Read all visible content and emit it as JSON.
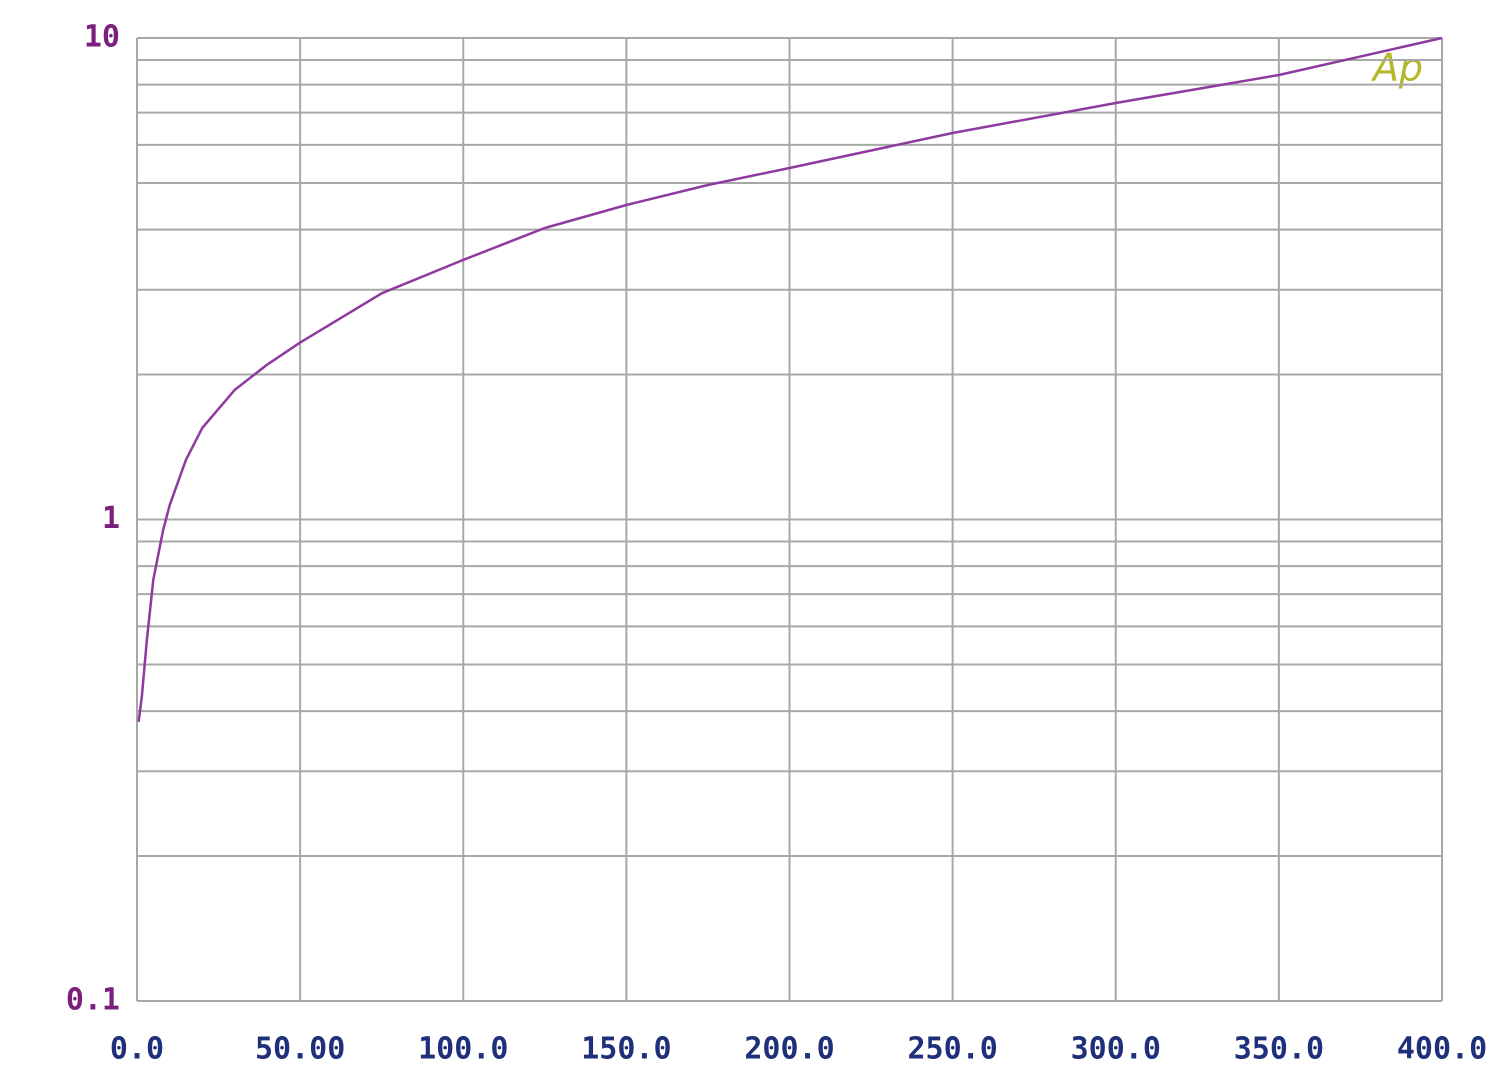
{
  "chart_data": {
    "type": "line",
    "logo": "Ap",
    "x": [
      0.5,
      1.5,
      3,
      5,
      8,
      10,
      15,
      20,
      30,
      40,
      50,
      75,
      100,
      125,
      150,
      175,
      200,
      250,
      300,
      350,
      400
    ],
    "series": [
      {
        "color": "#8e3a9e",
        "values": [
          0.38,
          0.43,
          0.56,
          0.75,
          0.95,
          1.07,
          1.33,
          1.55,
          1.86,
          2.1,
          2.33,
          2.95,
          3.46,
          4.03,
          4.5,
          4.95,
          5.37,
          6.35,
          7.33,
          8.38,
          10
        ]
      }
    ],
    "xlim": [
      0,
      400
    ],
    "xticks": [
      {
        "value": 0,
        "label": "0.0"
      },
      {
        "value": 50,
        "label": "50.00"
      },
      {
        "value": 100,
        "label": "100.0"
      },
      {
        "value": 150,
        "label": "150.0"
      },
      {
        "value": 200,
        "label": "200.0"
      },
      {
        "value": 250,
        "label": "250.0"
      },
      {
        "value": 300,
        "label": "300.0"
      },
      {
        "value": 350,
        "label": "350.0"
      },
      {
        "value": 400,
        "label": "400.0"
      }
    ],
    "ylim": [
      0.1,
      10
    ],
    "yticks": [
      0.1,
      1,
      10
    ],
    "log_y": true,
    "grid": true,
    "minor_grid": true
  }
}
